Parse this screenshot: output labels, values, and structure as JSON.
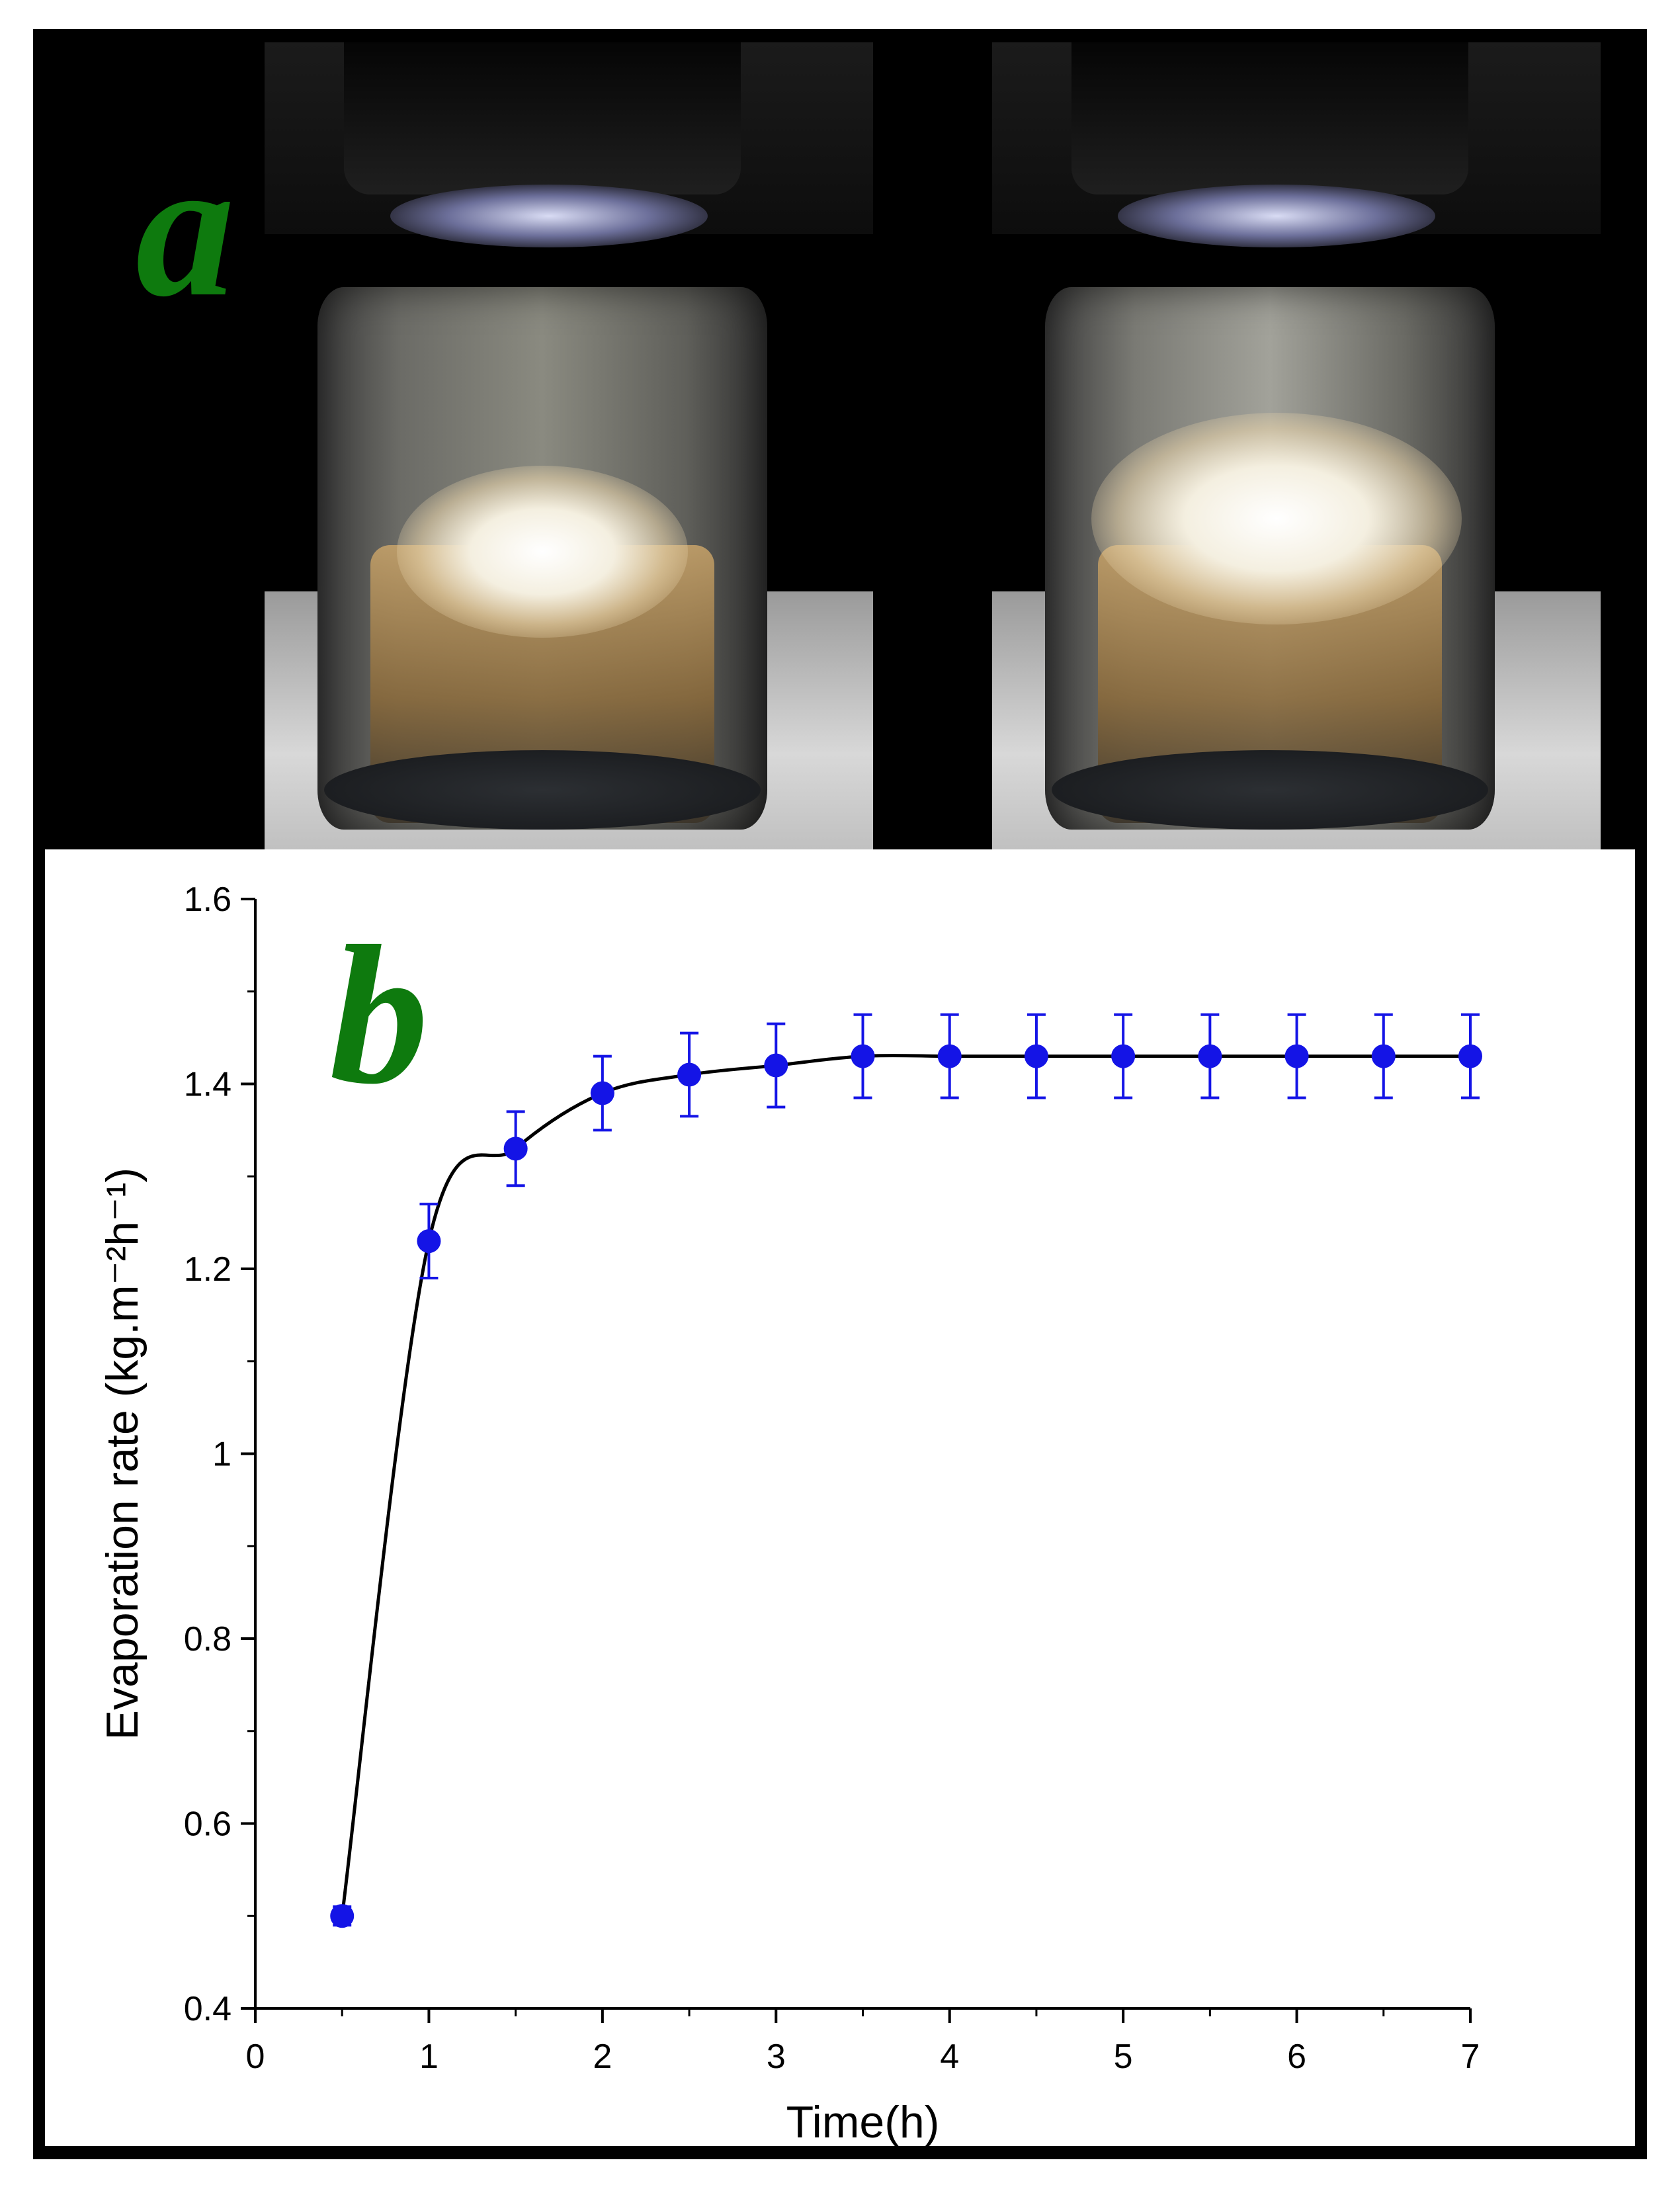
{
  "panel_a": {
    "label": "a"
  },
  "panel_b": {
    "label": "b"
  },
  "colors": {
    "marker": "#1414e6",
    "fit_line": "#000000",
    "panel_label": "#0e7a0e"
  },
  "chart_data": {
    "type": "scatter",
    "xlabel": "Time(h)",
    "ylabel": "Evaporation rate (kg.m⁻²h⁻¹)",
    "xlim": [
      0,
      7
    ],
    "ylim": [
      0.4,
      1.6
    ],
    "x_ticks": [
      "0",
      "1",
      "2",
      "3",
      "4",
      "5",
      "6",
      "7"
    ],
    "y_ticks": [
      "0.4",
      "0.6",
      "0.8",
      "1",
      "1.2",
      "1.4",
      "1.6"
    ],
    "x_tick_values": [
      0,
      1,
      2,
      3,
      4,
      5,
      6,
      7
    ],
    "y_tick_values": [
      0.4,
      0.6,
      0.8,
      1.0,
      1.2,
      1.4,
      1.6
    ],
    "series": [
      {
        "x": [
          0.5,
          1.0,
          1.5,
          2.0,
          2.5,
          3.0,
          3.5,
          4.0,
          4.5,
          5.0,
          5.5,
          6.0,
          6.5,
          7.0
        ],
        "y": [
          0.5,
          1.23,
          1.33,
          1.39,
          1.41,
          1.42,
          1.43,
          1.43,
          1.43,
          1.43,
          1.43,
          1.43,
          1.43,
          1.43
        ],
        "error": [
          0.01,
          0.04,
          0.04,
          0.04,
          0.045,
          0.045,
          0.045,
          0.045,
          0.045,
          0.045,
          0.045,
          0.045,
          0.045,
          0.045
        ]
      }
    ],
    "fit_curve": true,
    "grid": false,
    "legend": false
  }
}
